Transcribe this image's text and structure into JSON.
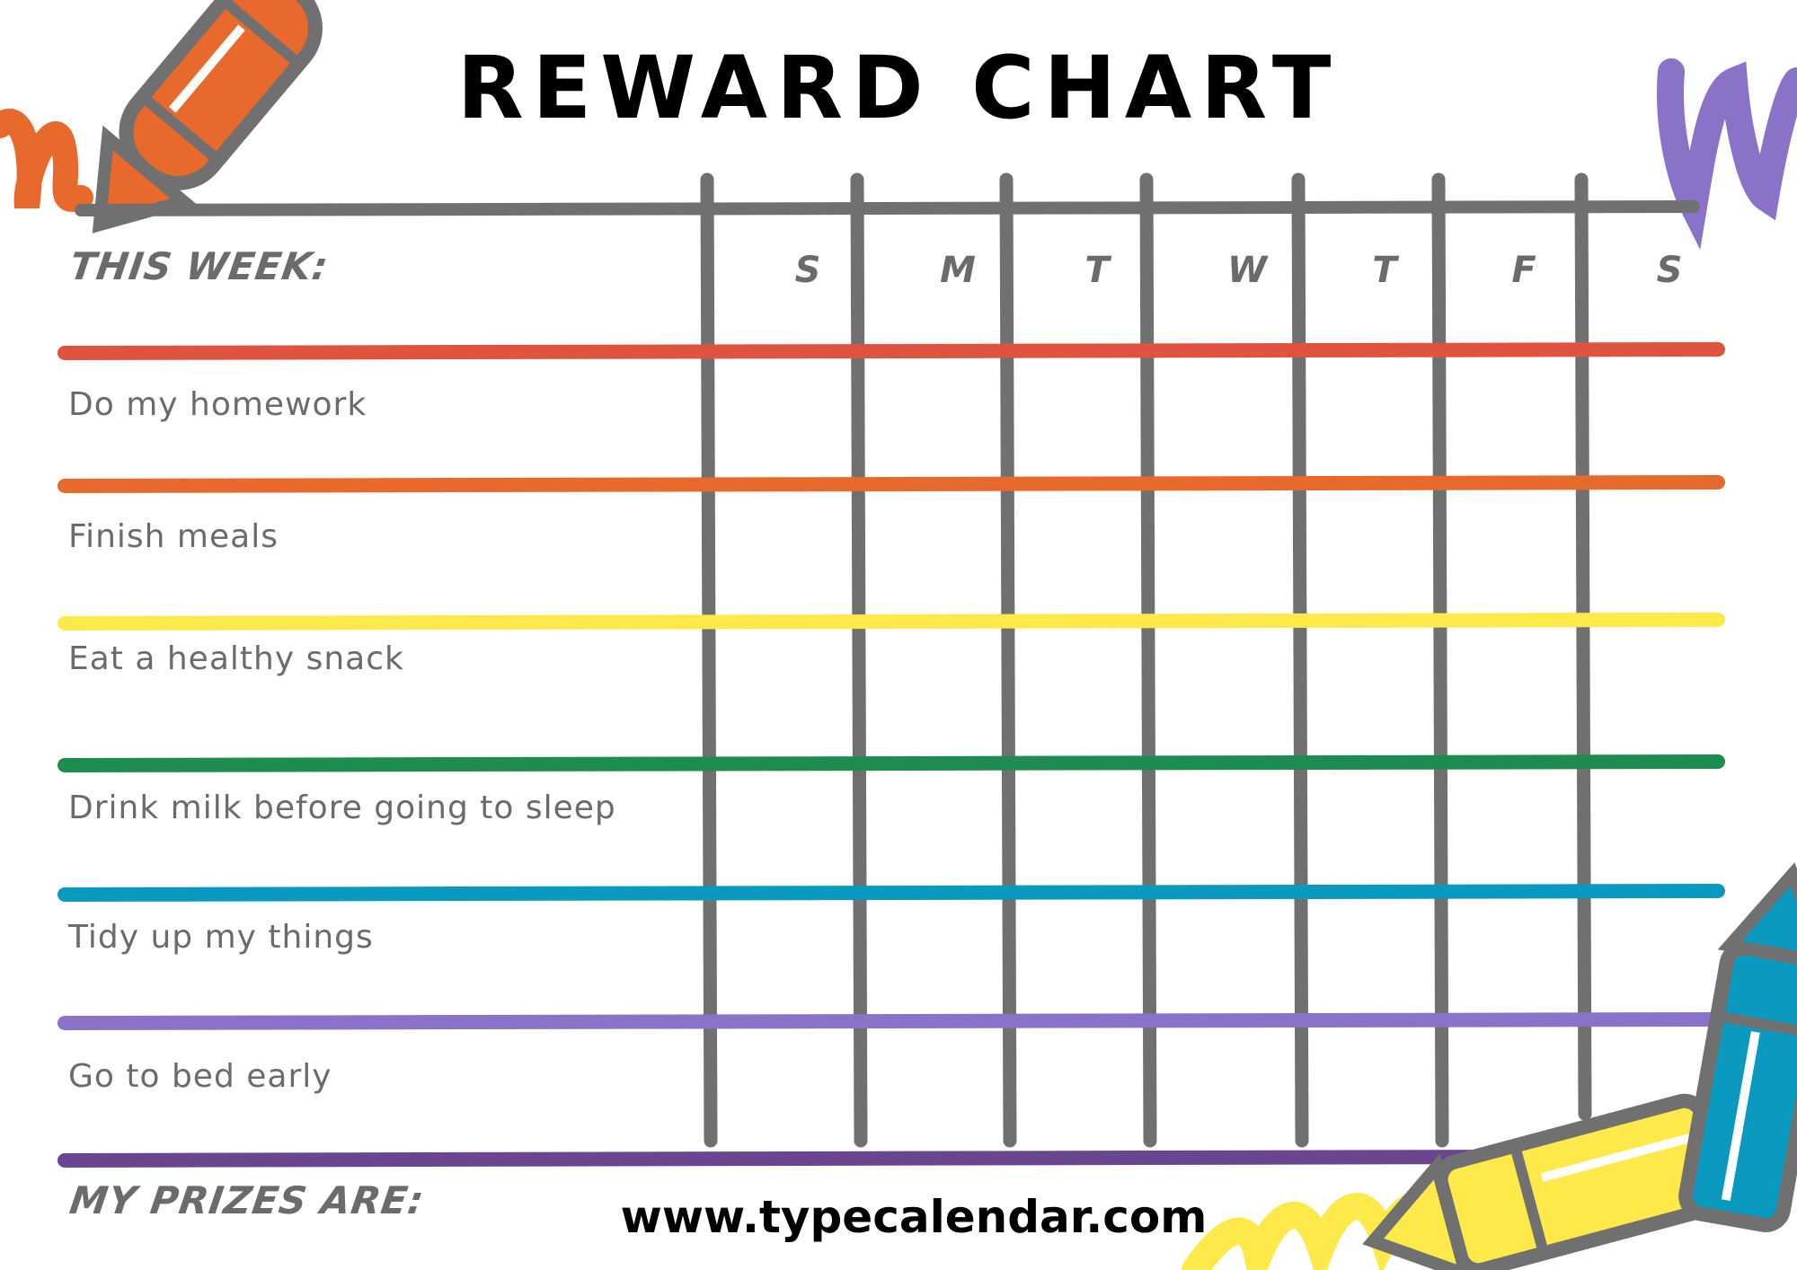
{
  "title": "REWARD CHART",
  "this_week_label": "THIS WEEK:",
  "days": [
    "S",
    "M",
    "T",
    "W",
    "T",
    "F",
    "S"
  ],
  "tasks": [
    {
      "label": "Do my homework",
      "line_color": "#e0533f"
    },
    {
      "label": "Finish meals",
      "line_color": "#e8692c"
    },
    {
      "label": "Eat a healthy snack",
      "line_color": "#fde94a"
    },
    {
      "label": "Drink milk before going to sleep",
      "line_color": "#1e8c4e"
    },
    {
      "label": "Tidy up my things",
      "line_color": "#0a9ac0"
    },
    {
      "label": "Go to bed early",
      "line_color": "#8a72c8"
    }
  ],
  "bottom_line_color": "#6a4590",
  "grid_color": "#707070",
  "prizes_label": "MY PRIZES ARE:",
  "website": "www.typecalendar.com",
  "decorations": [
    "orange-crayon-icon",
    "purple-scribble-icon",
    "blue-crayon-icon",
    "yellow-crayon-icon"
  ]
}
